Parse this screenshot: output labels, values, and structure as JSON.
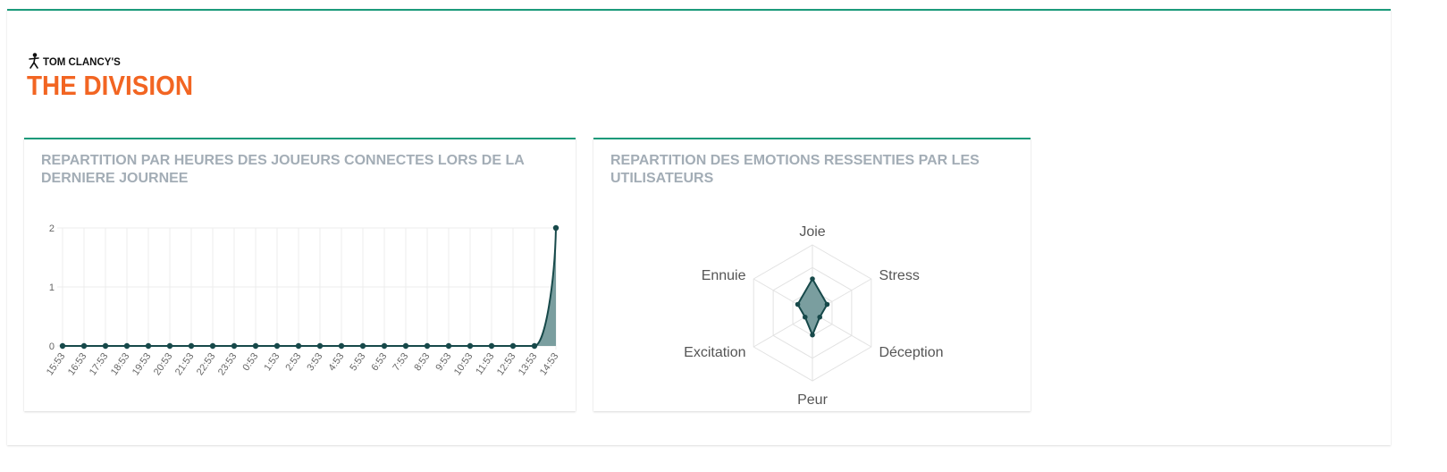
{
  "logo": {
    "top_text": "TOM CLANCY'S",
    "main_text": "THE DIVISION",
    "brand_color": "#f26522"
  },
  "colors": {
    "accent": "#1a9a7a",
    "series_line": "#17494a",
    "series_fill": "#7a9e9f"
  },
  "cards": {
    "hours": {
      "title": "REPARTITION PAR HEURES DES JOUEURS CONNECTES LORS DE LA DERNIERE JOURNEE"
    },
    "emotions": {
      "title": "REPARTITION DES EMOTIONS RESSENTIES PAR LES UTILISATEURS"
    }
  },
  "chart_data": [
    {
      "type": "area",
      "categories": [
        "15:53",
        "16:53",
        "17:53",
        "18:53",
        "19:53",
        "20:53",
        "21:53",
        "22:53",
        "23:53",
        "0:53",
        "1:53",
        "2:53",
        "3:53",
        "4:53",
        "5:53",
        "6:53",
        "7:53",
        "8:53",
        "9:53",
        "10:53",
        "11:53",
        "12:53",
        "13:53",
        "14:53"
      ],
      "values": [
        0,
        0,
        0,
        0,
        0,
        0,
        0,
        0,
        0,
        0,
        0,
        0,
        0,
        0,
        0,
        0,
        0,
        0,
        0,
        0,
        0,
        0,
        0,
        2
      ],
      "yticks": [
        0,
        1,
        2
      ],
      "ylim": [
        0,
        2
      ],
      "grid": true
    },
    {
      "type": "radar",
      "categories": [
        "Joie",
        "Stress",
        "Déception",
        "Peur",
        "Excitation",
        "Ennuie"
      ],
      "values": [
        2,
        1,
        0.5,
        1.3,
        0.5,
        1
      ],
      "rmax": 4,
      "grid_levels": 3
    }
  ]
}
